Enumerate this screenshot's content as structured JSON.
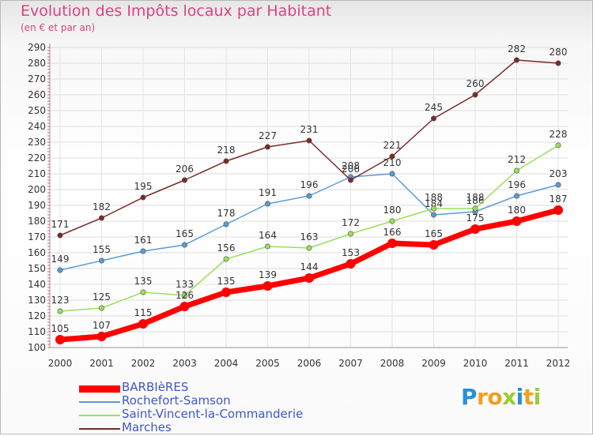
{
  "title": "Evolution des Impôts locaux par Habitant",
  "subtitle": "(en € et par an)",
  "logo": {
    "text": "Proxiti",
    "letters": [
      {
        "ch": "P",
        "color": "#2a8fd8"
      },
      {
        "ch": "r",
        "color": "#f0a020"
      },
      {
        "ch": "o",
        "color": "#f0a020"
      },
      {
        "ch": "x",
        "color": "#9acd32"
      },
      {
        "ch": "i",
        "color": "#2a8fd8"
      },
      {
        "ch": "t",
        "color": "#f0a020"
      },
      {
        "ch": "i",
        "color": "#9acd32"
      }
    ]
  },
  "chart_data": {
    "type": "line",
    "title": "Evolution des Impôts locaux par Habitant",
    "subtitle": "(en € et par an)",
    "x": [
      "2000",
      "2001",
      "2002",
      "2003",
      "2004",
      "2005",
      "2006",
      "2007",
      "2008",
      "2009",
      "2010",
      "2011",
      "2012"
    ],
    "ylim": [
      100,
      290
    ],
    "yticks": [
      100,
      110,
      120,
      130,
      140,
      150,
      160,
      170,
      180,
      190,
      200,
      210,
      220,
      230,
      240,
      250,
      260,
      270,
      280,
      290
    ],
    "grid": true,
    "legend_position": "bottom-left",
    "series": [
      {
        "name": "BARBIèRES",
        "color": "#ff0000",
        "emphasis": true,
        "values": [
          105,
          107,
          115,
          126,
          135,
          139,
          144,
          153,
          166,
          165,
          175,
          180,
          187
        ]
      },
      {
        "name": "Rochefort-Samson",
        "color": "#5b9bd5",
        "values": [
          149,
          155,
          161,
          165,
          178,
          191,
          196,
          208,
          210,
          184,
          186,
          196,
          203
        ]
      },
      {
        "name": "Saint-Vincent-la-Commanderie",
        "color": "#99e05a",
        "values": [
          123,
          125,
          135,
          133,
          156,
          164,
          163,
          172,
          180,
          188,
          188,
          212,
          228
        ]
      },
      {
        "name": "Marches",
        "color": "#7a2a2a",
        "values": [
          171,
          182,
          195,
          206,
          218,
          227,
          231,
          206,
          221,
          245,
          260,
          282,
          280
        ]
      }
    ]
  }
}
